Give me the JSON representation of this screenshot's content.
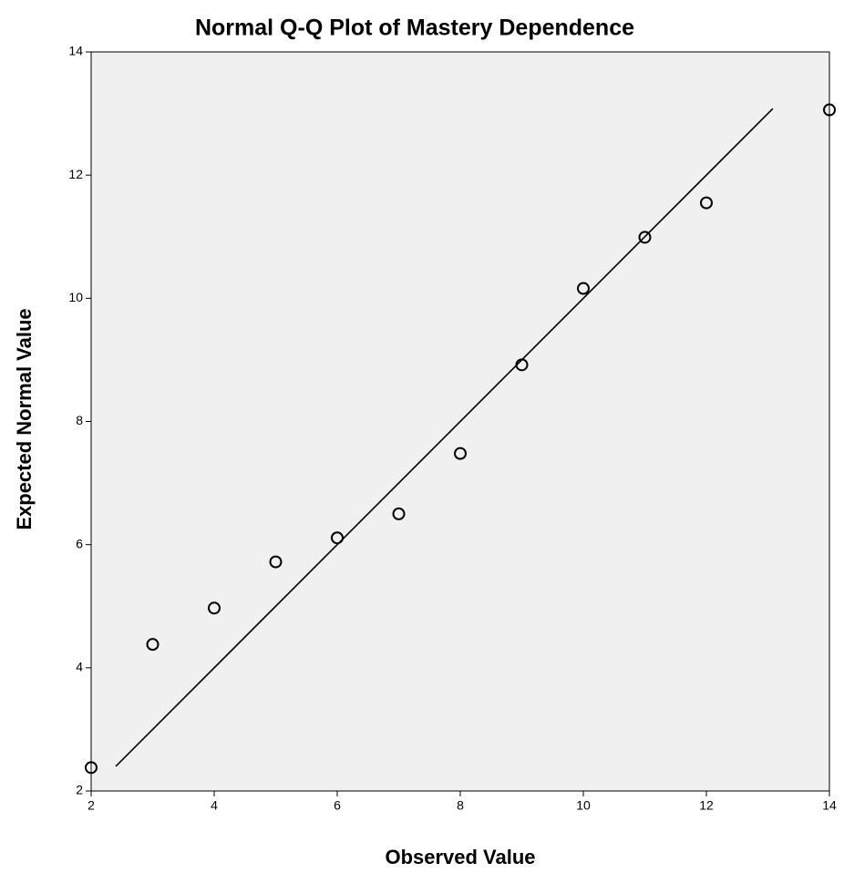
{
  "chart_data": {
    "type": "scatter",
    "title": "Normal Q-Q Plot of Mastery Dependence",
    "x_label": "Observed Value",
    "y_label": "Expected Normal Value",
    "x": [
      2,
      3,
      4,
      5,
      6,
      7,
      8,
      9,
      10,
      11,
      12,
      14
    ],
    "y": [
      2.38,
      4.38,
      4.97,
      5.72,
      6.11,
      6.5,
      7.48,
      8.92,
      10.16,
      10.99,
      11.55,
      13.06
    ],
    "color": "#000000",
    "reference_line": {
      "x": [
        2.4,
        13.08
      ],
      "y": [
        2.4,
        13.08
      ],
      "color": "#000000"
    },
    "background": "#f0f0f0",
    "xlim": [
      2,
      14
    ],
    "xticks": [
      2,
      4,
      6,
      8,
      10,
      12,
      14
    ],
    "ylim": [
      2,
      14
    ],
    "yticks": [
      2,
      4,
      6,
      8,
      10,
      12,
      14
    ],
    "grid": false
  }
}
